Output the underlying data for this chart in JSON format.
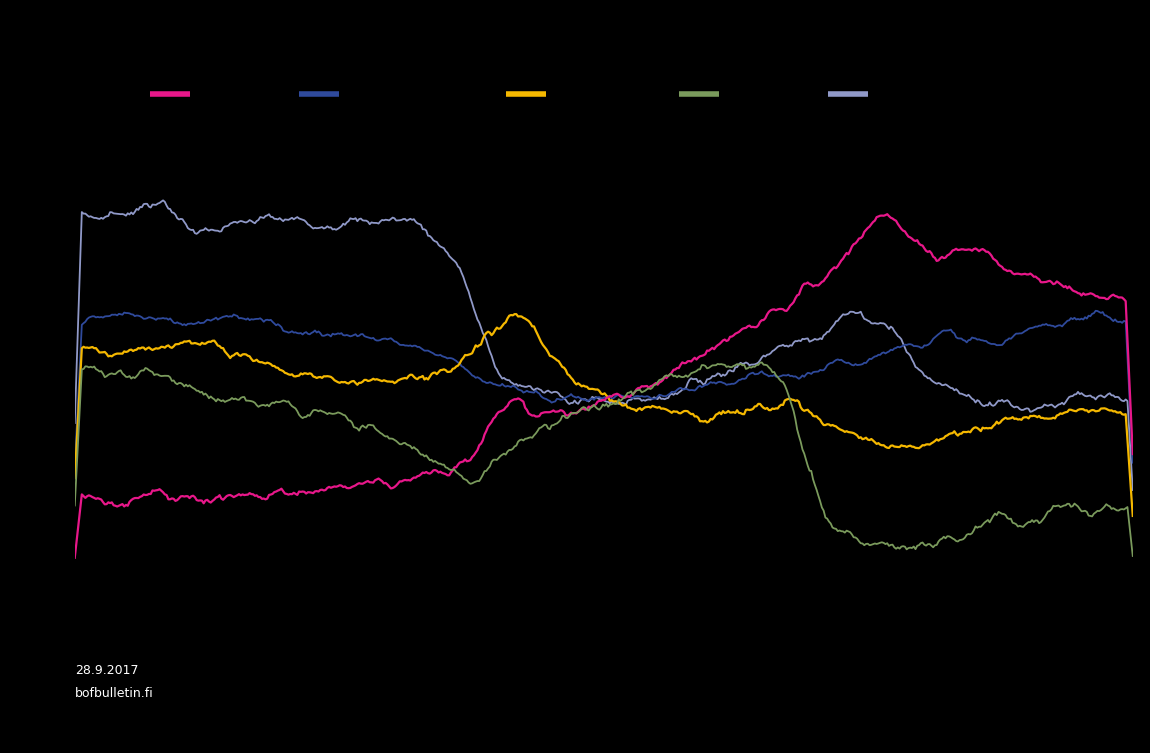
{
  "background_color": "#000000",
  "text_color": "#ffffff",
  "line_colors": {
    "magenta": "#e8178a",
    "dark_blue": "#2f4a9c",
    "yellow": "#f5b800",
    "olive_green": "#7a9a5c",
    "light_blue": "#9099c8"
  },
  "date_label": "28.9.2017",
  "source_label": "bofbulletin.fi",
  "n_points": 600
}
